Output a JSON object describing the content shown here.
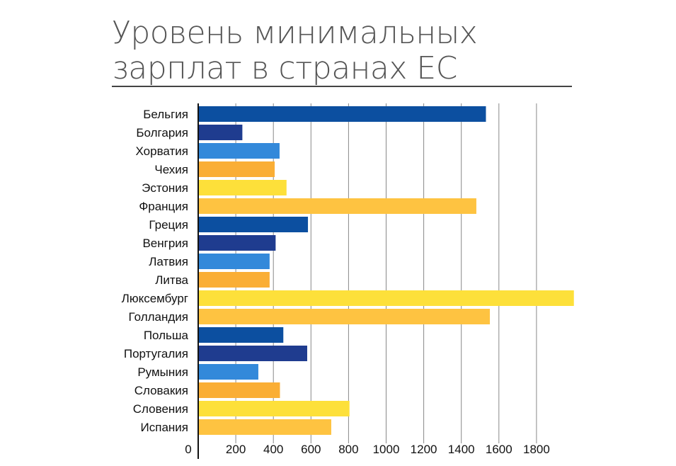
{
  "title_line1": "Уровень минимальных",
  "title_line2": "зарплат в странах ЕС",
  "chart_data": {
    "type": "bar",
    "orientation": "horizontal",
    "title": "Уровень минимальных зарплат в странах ЕС",
    "categories": [
      "Бельгия",
      "Болгария",
      "Хорватия",
      "Чехия",
      "Эстония",
      "Франция",
      "Греция",
      "Венгрия",
      "Латвия",
      "Литва",
      "Люксембург",
      "Голландия",
      "Польша",
      "Португалия",
      "Румыния",
      "Словакия",
      "Словения",
      "Испания"
    ],
    "values": [
      1531,
      235,
      433,
      407,
      470,
      1480,
      584,
      412,
      380,
      380,
      1999,
      1552,
      453,
      580,
      320,
      435,
      805,
      708
    ],
    "colors": [
      "#0c4fa0",
      "#1f3c8f",
      "#3389da",
      "#faae35",
      "#fde03a",
      "#fec341",
      "#0c4fa0",
      "#1f3c8f",
      "#3389da",
      "#faae35",
      "#fde03a",
      "#fec341",
      "#0c4fa0",
      "#1f3c8f",
      "#3389da",
      "#faae35",
      "#fde03a",
      "#fec341"
    ],
    "xticks": [
      0,
      200,
      400,
      600,
      800,
      1000,
      1200,
      1400,
      1600,
      1800
    ],
    "xlim": [
      0,
      2000
    ],
    "grid": true,
    "gridline_color": "#888888",
    "legend": "none"
  }
}
